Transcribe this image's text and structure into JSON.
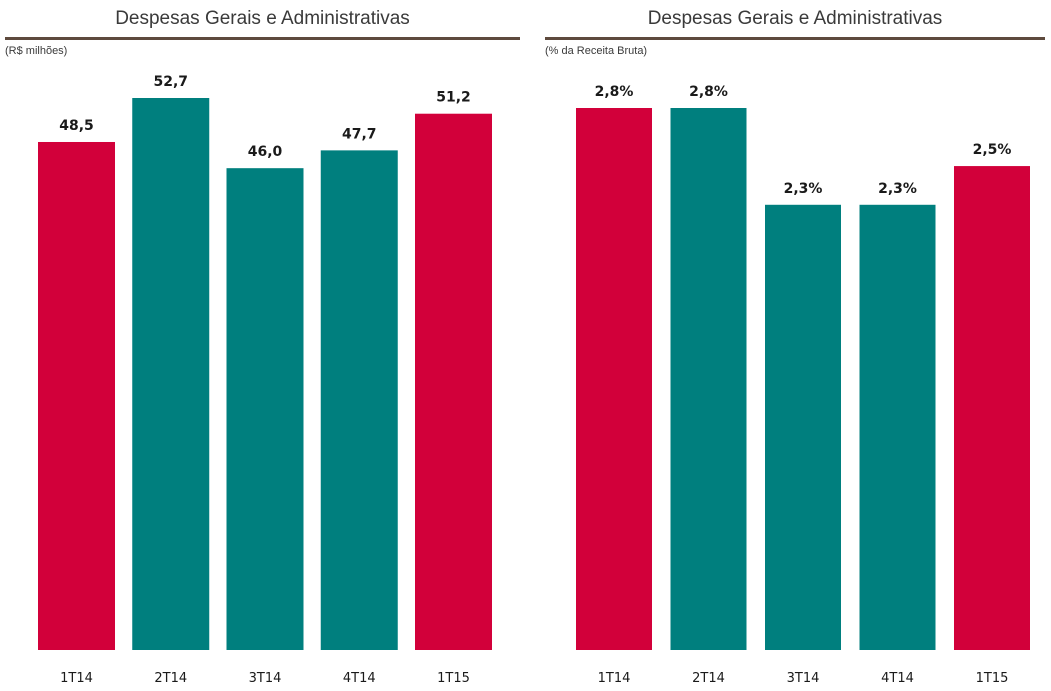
{
  "colors": {
    "highlight": "#D2003A",
    "normal": "#007F7E",
    "rule": "#5E4A3E"
  },
  "chart_data": [
    {
      "type": "bar",
      "title": "Despesas Gerais e Administrativas",
      "unit": "(R$ milhões)",
      "categories": [
        "1T14",
        "2T14",
        "3T14",
        "4T14",
        "1T15"
      ],
      "values": [
        48.5,
        52.7,
        46.0,
        47.7,
        51.2
      ],
      "labels": [
        "48,5",
        "52,7",
        "46,0",
        "47,7",
        "51,2"
      ],
      "bar_colors": [
        "highlight",
        "normal",
        "normal",
        "normal",
        "highlight"
      ],
      "ylim": [
        0,
        60
      ],
      "grid": false
    },
    {
      "type": "bar",
      "title": "Despesas Gerais e Administrativas",
      "unit": "(% da Receita Bruta)",
      "categories": [
        "1T14",
        "2T14",
        "3T14",
        "4T14",
        "1T15"
      ],
      "values": [
        2.8,
        2.8,
        2.3,
        2.3,
        2.5
      ],
      "labels": [
        "2,8%",
        "2,8%",
        "2,3%",
        "2,3%",
        "2,5%"
      ],
      "bar_colors": [
        "highlight",
        "normal",
        "normal",
        "normal",
        "highlight"
      ],
      "ylim": [
        0,
        3.2
      ],
      "grid": false
    }
  ]
}
